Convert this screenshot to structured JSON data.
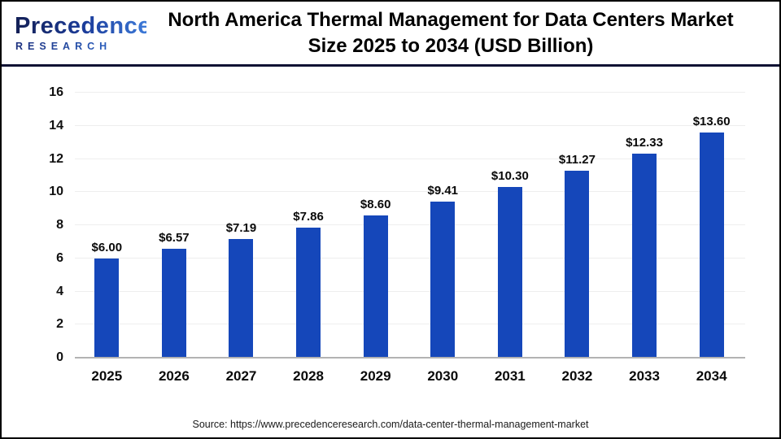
{
  "header": {
    "logo": {
      "brand": "Precedence",
      "sub": "RESEARCH"
    },
    "title_line1": "North America Thermal Management for Data Centers Market",
    "title_line2": "Size 2025 to 2034 (USD Billion)"
  },
  "chart_data": {
    "type": "bar",
    "title": "North America Thermal Management for Data Centers Market Size 2025 to 2034 (USD Billion)",
    "categories": [
      "2025",
      "2026",
      "2027",
      "2028",
      "2029",
      "2030",
      "2031",
      "2032",
      "2033",
      "2034"
    ],
    "values": [
      6.0,
      6.57,
      7.19,
      7.86,
      8.6,
      9.41,
      10.3,
      11.27,
      12.33,
      13.6
    ],
    "value_labels": [
      "$6.00",
      "$6.57",
      "$7.19",
      "$7.86",
      "$8.60",
      "$9.41",
      "$10.30",
      "$11.27",
      "$12.33",
      "$13.60"
    ],
    "xlabel": "",
    "ylabel": "",
    "ylim": [
      0,
      16
    ],
    "yticks": [
      0,
      2,
      4,
      6,
      8,
      10,
      12,
      14,
      16
    ],
    "grid": true,
    "legend_position": "none",
    "bar_color": "#1547ba"
  },
  "footer": {
    "source": "Source: https://www.precedenceresearch.com/data-center-thermal-management-market"
  },
  "colors": {
    "bar": "#1547ba",
    "header_rule": "#0e1233",
    "gridline": "#eeeeee",
    "axis_line": "#b3b3b3",
    "logo_dark": "#131f55",
    "logo_light": "#3d7ad8"
  }
}
